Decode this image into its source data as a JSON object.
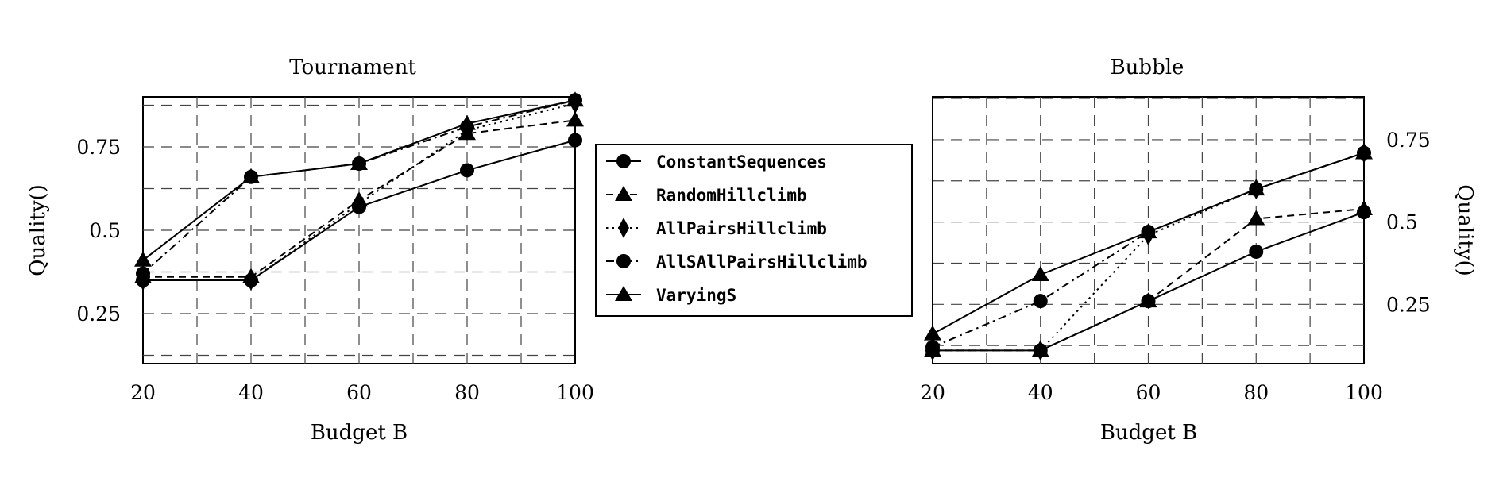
{
  "legend": {
    "placement": "center",
    "entries": [
      "ConstantSequences",
      "RandomHillclimb",
      "AllPairsHillclimb",
      "AllSAllPairsHillclimb",
      "VaryingS"
    ]
  },
  "chart_data": [
    {
      "type": "line",
      "title": "Tournament",
      "xlabel": "Budget B",
      "ylabel": "Quality()",
      "x": [
        20,
        40,
        60,
        80,
        100
      ],
      "xlim": [
        20,
        100
      ],
      "ylim": [
        0.1,
        0.9
      ],
      "xticks": [
        20,
        40,
        60,
        80,
        100
      ],
      "yticks": [
        0.25,
        0.5,
        0.75
      ],
      "ytick_labels": [
        "0.25",
        "0.5",
        "0.75"
      ],
      "yaxis_side": "left",
      "grid": true,
      "series": [
        {
          "name": "ConstantSequences",
          "marker": "circle",
          "dash": "solid",
          "values": [
            0.35,
            0.35,
            0.57,
            0.68,
            0.77
          ]
        },
        {
          "name": "RandomHillclimb",
          "marker": "triangle",
          "dash": "dashed",
          "values": [
            0.36,
            0.36,
            0.59,
            0.79,
            0.83
          ]
        },
        {
          "name": "AllPairsHillclimb",
          "marker": "diamond",
          "dash": "dotted",
          "values": [
            0.35,
            0.35,
            0.58,
            0.8,
            0.88
          ]
        },
        {
          "name": "AllSAllPairsHillclimb",
          "marker": "circle",
          "dash": "dashdot",
          "values": [
            0.37,
            0.66,
            0.7,
            0.81,
            0.89
          ]
        },
        {
          "name": "VaryingS",
          "marker": "triangle",
          "dash": "solid",
          "values": [
            0.41,
            0.66,
            0.7,
            0.82,
            0.89
          ]
        }
      ]
    },
    {
      "type": "line",
      "title": "Bubble",
      "xlabel": "Budget B",
      "ylabel": "Quality()",
      "x": [
        20,
        40,
        60,
        80,
        100
      ],
      "xlim": [
        20,
        100
      ],
      "ylim": [
        0.07,
        0.88
      ],
      "xticks": [
        20,
        40,
        60,
        80,
        100
      ],
      "yticks": [
        0.25,
        0.5,
        0.75
      ],
      "ytick_labels": [
        "0.25",
        "0.5",
        "0.75"
      ],
      "yaxis_side": "right",
      "grid": true,
      "series": [
        {
          "name": "ConstantSequences",
          "marker": "circle",
          "dash": "solid",
          "values": [
            0.11,
            0.11,
            0.26,
            0.41,
            0.53
          ]
        },
        {
          "name": "RandomHillclimb",
          "marker": "triangle",
          "dash": "dashed",
          "values": [
            0.11,
            0.11,
            0.26,
            0.51,
            0.54
          ]
        },
        {
          "name": "AllPairsHillclimb",
          "marker": "diamond",
          "dash": "dotted",
          "values": [
            0.11,
            0.11,
            0.46,
            0.6,
            0.71
          ]
        },
        {
          "name": "AllSAllPairsHillclimb",
          "marker": "circle",
          "dash": "dashdot",
          "values": [
            0.12,
            0.26,
            0.47,
            0.6,
            0.71
          ]
        },
        {
          "name": "VaryingS",
          "marker": "triangle",
          "dash": "solid",
          "values": [
            0.16,
            0.34,
            0.47,
            0.6,
            0.71
          ]
        }
      ]
    }
  ]
}
